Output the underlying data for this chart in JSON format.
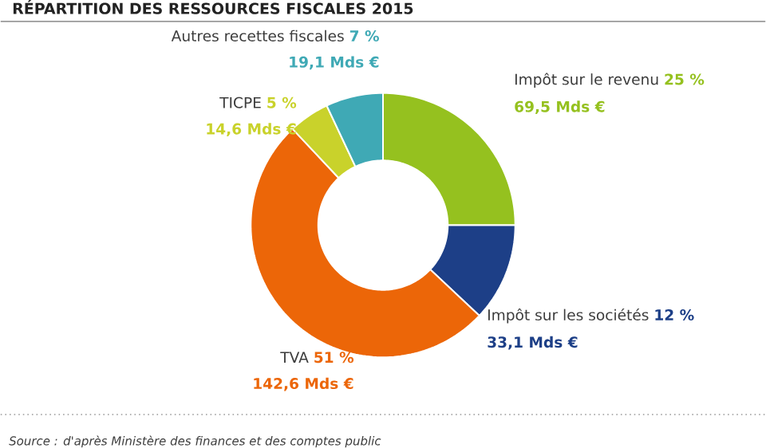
{
  "chart_data": {
    "type": "donut",
    "title": "RÉPARTITION DES RESSOURCES FISCALES 2015",
    "categories": [
      "Impôt sur le revenu",
      "Impôt sur les sociétés",
      "TVA",
      "TICPE",
      "Autres recettes fiscales"
    ],
    "values": [
      25,
      12,
      51,
      5,
      7
    ],
    "colors": [
      "#95c11f",
      "#1d3f87",
      "#ec6608",
      "#c9d22b",
      "#3fa9b5"
    ],
    "value_labels": [
      "25 %",
      "12 %",
      "51 %",
      "5 %",
      "7 %"
    ],
    "annotations": [
      "69,5 Mds €",
      "33,1 Mds €",
      "142,6 Mds €",
      "14,6 Mds €",
      "19,1 Mds €",
      "Source : d'après Ministère des finances et des comptes public"
    ]
  }
}
